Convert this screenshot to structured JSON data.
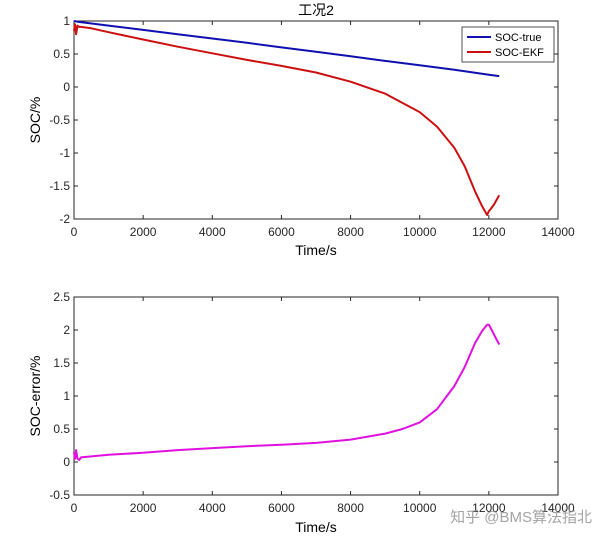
{
  "watermark": "知乎 @BMS算法指北",
  "colors": {
    "true_line": "#1010B0",
    "ekf_line": "#CC1010",
    "error_line": "#E010E0",
    "axis": "#262626"
  },
  "chart_data": [
    {
      "type": "line",
      "title": "工况2",
      "xlabel": "Time/s",
      "ylabel": "SOC/%",
      "xlim": [
        0,
        14000
      ],
      "ylim": [
        -2,
        1
      ],
      "xticks": [
        0,
        2000,
        4000,
        6000,
        8000,
        10000,
        12000,
        14000
      ],
      "yticks": [
        1,
        0.5,
        0,
        -0.5,
        -1,
        -1.5,
        -2
      ],
      "legend_position": "top-right",
      "series": [
        {
          "name": "SOC-true",
          "color": "#1010B0",
          "x": [
            0,
            100,
            1000,
            2000,
            3000,
            4000,
            5000,
            6000,
            7000,
            8000,
            9000,
            10000,
            11000,
            12000,
            12300
          ],
          "y": [
            1.0,
            0.99,
            0.93,
            0.865,
            0.8,
            0.735,
            0.67,
            0.6,
            0.535,
            0.465,
            0.395,
            0.33,
            0.26,
            0.185,
            0.165
          ]
        },
        {
          "name": "SOC-EKF",
          "color": "#CC1010",
          "x": [
            0,
            30,
            60,
            100,
            150,
            200,
            500,
            1000,
            2000,
            3000,
            4000,
            5000,
            6000,
            7000,
            8000,
            9000,
            10000,
            10500,
            11000,
            11300,
            11600,
            11800,
            11950,
            12000,
            12050,
            12150,
            12300
          ],
          "y": [
            0.85,
            0.95,
            0.8,
            0.93,
            0.91,
            0.91,
            0.89,
            0.83,
            0.72,
            0.61,
            0.51,
            0.41,
            0.32,
            0.22,
            0.08,
            -0.1,
            -0.38,
            -0.6,
            -0.92,
            -1.2,
            -1.58,
            -1.8,
            -1.94,
            -1.88,
            -1.85,
            -1.78,
            -1.64
          ]
        }
      ]
    },
    {
      "type": "line",
      "title": "",
      "xlabel": "Time/s",
      "ylabel": "SOC-error/%",
      "xlim": [
        0,
        14000
      ],
      "ylim": [
        -0.5,
        2.5
      ],
      "xticks": [
        0,
        2000,
        4000,
        6000,
        8000,
        10000,
        12000,
        14000
      ],
      "yticks": [
        2.5,
        2,
        1.5,
        1,
        0.5,
        0,
        -0.5
      ],
      "series": [
        {
          "name": "SOC-error",
          "color": "#E010E0",
          "x": [
            0,
            30,
            60,
            100,
            150,
            200,
            1000,
            2000,
            3000,
            4000,
            5000,
            6000,
            7000,
            8000,
            9000,
            9500,
            10000,
            10500,
            11000,
            11300,
            11600,
            11800,
            11950,
            12000,
            12050,
            12150,
            12300
          ],
          "y": [
            0.15,
            0.05,
            0.18,
            0.05,
            0.03,
            0.07,
            0.11,
            0.14,
            0.18,
            0.21,
            0.24,
            0.26,
            0.29,
            0.34,
            0.43,
            0.5,
            0.6,
            0.8,
            1.15,
            1.44,
            1.8,
            1.98,
            2.08,
            2.08,
            2.03,
            1.93,
            1.78
          ]
        }
      ]
    }
  ]
}
